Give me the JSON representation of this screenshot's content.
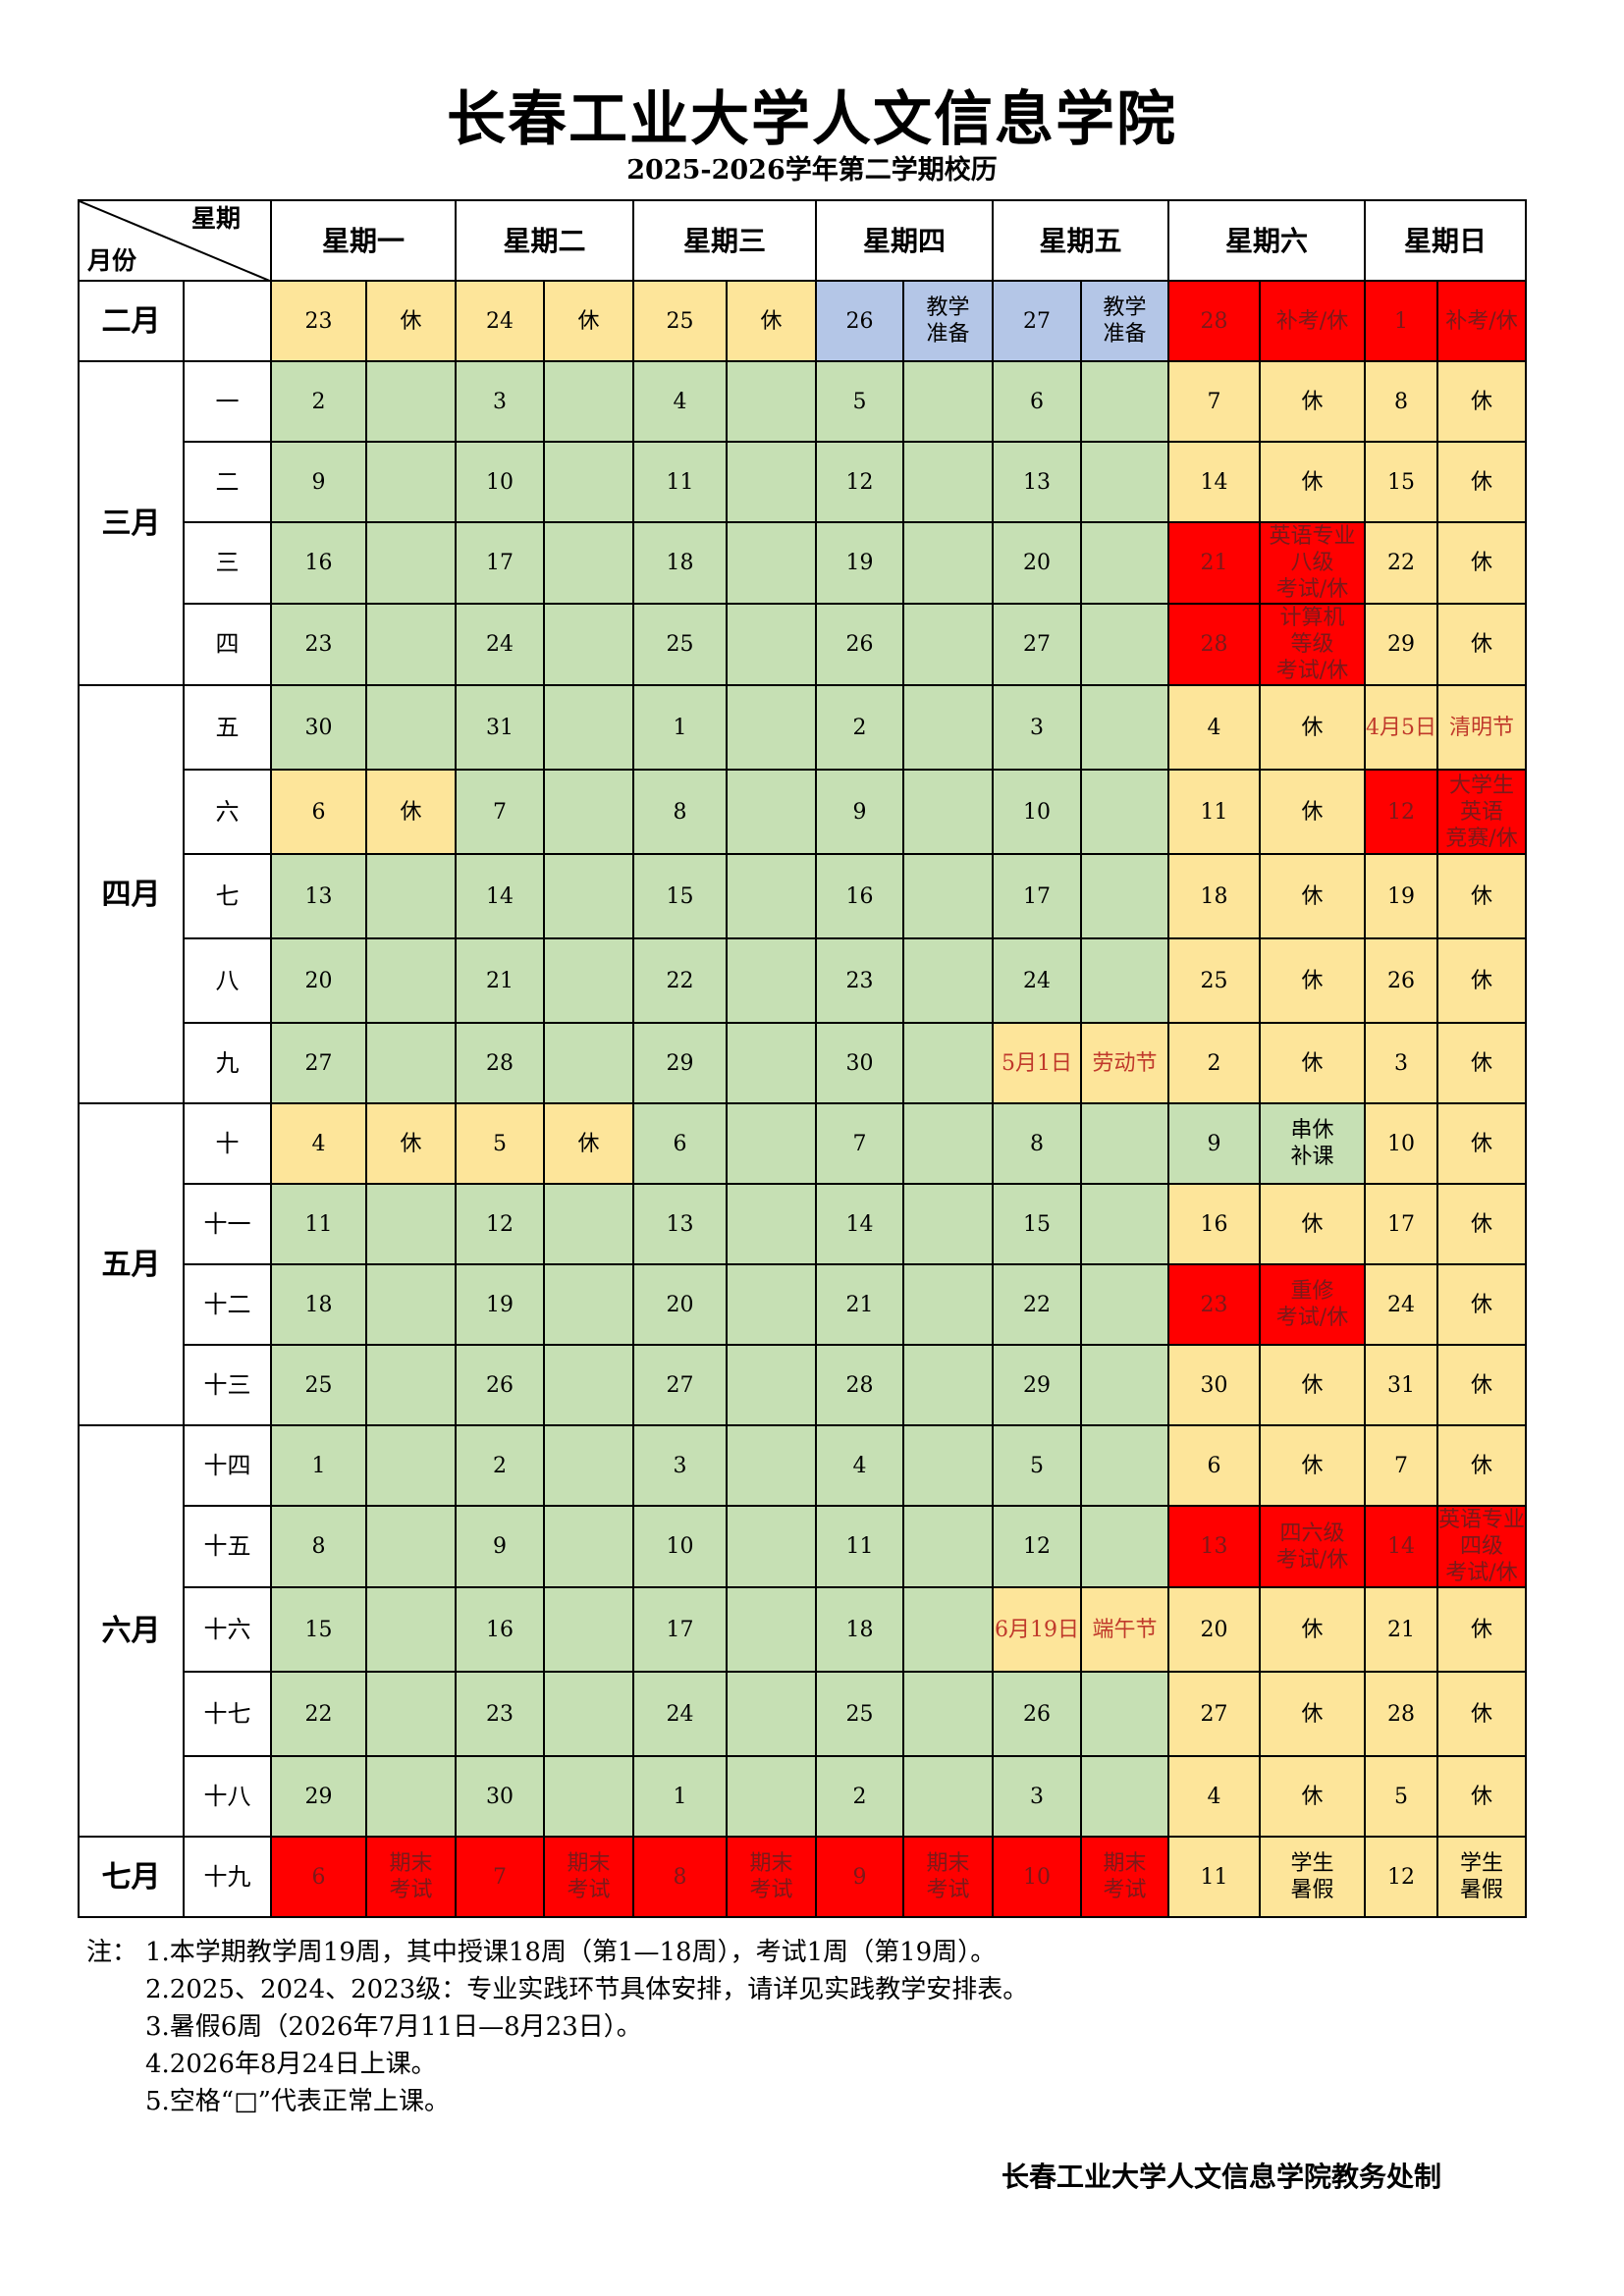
{
  "title": "长春工业大学人文信息学院",
  "subtitle": "2025-2026学年第二学期校历",
  "header": {
    "corner_top": "星期",
    "corner_bottom": "月份",
    "weekdays": [
      "星期一",
      "星期二",
      "星期三",
      "星期四",
      "星期五",
      "星期六",
      "星期日"
    ]
  },
  "rows": [
    {
      "month": "二月",
      "month_span": 1,
      "week": "",
      "cells": [
        [
          "23",
          "rest"
        ],
        [
          "休",
          "rest"
        ],
        [
          "24",
          "rest"
        ],
        [
          "休",
          "rest"
        ],
        [
          "25",
          "rest"
        ],
        [
          "休",
          "rest"
        ],
        [
          "26",
          "blue"
        ],
        [
          "教学\n准备",
          "blue"
        ],
        [
          "27",
          "blue"
        ],
        [
          "教学\n准备",
          "blue"
        ],
        [
          "28",
          "red"
        ],
        [
          "补考/休",
          "red"
        ],
        [
          "1",
          "red"
        ],
        [
          "补考/休",
          "red"
        ]
      ]
    },
    {
      "month": "三月",
      "month_span": 4,
      "week": "一",
      "cells": [
        [
          "2",
          "work"
        ],
        [
          "",
          "work"
        ],
        [
          "3",
          "work"
        ],
        [
          "",
          "work"
        ],
        [
          "4",
          "work"
        ],
        [
          "",
          "work"
        ],
        [
          "5",
          "work"
        ],
        [
          "",
          "work"
        ],
        [
          "6",
          "work"
        ],
        [
          "",
          "work"
        ],
        [
          "7",
          "rest"
        ],
        [
          "休",
          "rest"
        ],
        [
          "8",
          "rest"
        ],
        [
          "休",
          "rest"
        ]
      ]
    },
    {
      "week": "二",
      "cells": [
        [
          "9",
          "work"
        ],
        [
          "",
          "work"
        ],
        [
          "10",
          "work"
        ],
        [
          "",
          "work"
        ],
        [
          "11",
          "work"
        ],
        [
          "",
          "work"
        ],
        [
          "12",
          "work"
        ],
        [
          "",
          "work"
        ],
        [
          "13",
          "work"
        ],
        [
          "",
          "work"
        ],
        [
          "14",
          "rest"
        ],
        [
          "休",
          "rest"
        ],
        [
          "15",
          "rest"
        ],
        [
          "休",
          "rest"
        ]
      ]
    },
    {
      "week": "三",
      "cells": [
        [
          "16",
          "work"
        ],
        [
          "",
          "work"
        ],
        [
          "17",
          "work"
        ],
        [
          "",
          "work"
        ],
        [
          "18",
          "work"
        ],
        [
          "",
          "work"
        ],
        [
          "19",
          "work"
        ],
        [
          "",
          "work"
        ],
        [
          "20",
          "work"
        ],
        [
          "",
          "work"
        ],
        [
          "21",
          "red"
        ],
        [
          "英语专业\n八级\n考试/休",
          "red"
        ],
        [
          "22",
          "rest"
        ],
        [
          "休",
          "rest"
        ]
      ]
    },
    {
      "week": "四",
      "cells": [
        [
          "23",
          "work"
        ],
        [
          "",
          "work"
        ],
        [
          "24",
          "work"
        ],
        [
          "",
          "work"
        ],
        [
          "25",
          "work"
        ],
        [
          "",
          "work"
        ],
        [
          "26",
          "work"
        ],
        [
          "",
          "work"
        ],
        [
          "27",
          "work"
        ],
        [
          "",
          "work"
        ],
        [
          "28",
          "red"
        ],
        [
          "计算机\n等级\n考试/休",
          "red"
        ],
        [
          "29",
          "rest"
        ],
        [
          "休",
          "rest"
        ]
      ]
    },
    {
      "month": "四月",
      "month_span": 5,
      "week": "五",
      "cells": [
        [
          "30",
          "work"
        ],
        [
          "",
          "work"
        ],
        [
          "31",
          "work"
        ],
        [
          "",
          "work"
        ],
        [
          "1",
          "work"
        ],
        [
          "",
          "work"
        ],
        [
          "2",
          "work"
        ],
        [
          "",
          "work"
        ],
        [
          "3",
          "work"
        ],
        [
          "",
          "work"
        ],
        [
          "4",
          "rest"
        ],
        [
          "休",
          "rest"
        ],
        [
          "4月5日",
          "rest-hol"
        ],
        [
          "清明节",
          "rest-hol"
        ]
      ]
    },
    {
      "week": "六",
      "cells": [
        [
          "6",
          "rest"
        ],
        [
          "休",
          "rest"
        ],
        [
          "7",
          "work"
        ],
        [
          "",
          "work"
        ],
        [
          "8",
          "work"
        ],
        [
          "",
          "work"
        ],
        [
          "9",
          "work"
        ],
        [
          "",
          "work"
        ],
        [
          "10",
          "work"
        ],
        [
          "",
          "work"
        ],
        [
          "11",
          "rest"
        ],
        [
          "休",
          "rest"
        ],
        [
          "12",
          "red"
        ],
        [
          "大学生\n英语\n竞赛/休",
          "red"
        ]
      ]
    },
    {
      "week": "七",
      "cells": [
        [
          "13",
          "work"
        ],
        [
          "",
          "work"
        ],
        [
          "14",
          "work"
        ],
        [
          "",
          "work"
        ],
        [
          "15",
          "work"
        ],
        [
          "",
          "work"
        ],
        [
          "16",
          "work"
        ],
        [
          "",
          "work"
        ],
        [
          "17",
          "work"
        ],
        [
          "",
          "work"
        ],
        [
          "18",
          "rest"
        ],
        [
          "休",
          "rest"
        ],
        [
          "19",
          "rest"
        ],
        [
          "休",
          "rest"
        ]
      ]
    },
    {
      "week": "八",
      "cells": [
        [
          "20",
          "work"
        ],
        [
          "",
          "work"
        ],
        [
          "21",
          "work"
        ],
        [
          "",
          "work"
        ],
        [
          "22",
          "work"
        ],
        [
          "",
          "work"
        ],
        [
          "23",
          "work"
        ],
        [
          "",
          "work"
        ],
        [
          "24",
          "work"
        ],
        [
          "",
          "work"
        ],
        [
          "25",
          "rest"
        ],
        [
          "休",
          "rest"
        ],
        [
          "26",
          "rest"
        ],
        [
          "休",
          "rest"
        ]
      ]
    },
    {
      "week": "九",
      "cells": [
        [
          "27",
          "work"
        ],
        [
          "",
          "work"
        ],
        [
          "28",
          "work"
        ],
        [
          "",
          "work"
        ],
        [
          "29",
          "work"
        ],
        [
          "",
          "work"
        ],
        [
          "30",
          "work"
        ],
        [
          "",
          "work"
        ],
        [
          "5月1日",
          "rest-hol"
        ],
        [
          "劳动节",
          "rest-hol"
        ],
        [
          "2",
          "rest"
        ],
        [
          "休",
          "rest"
        ],
        [
          "3",
          "rest"
        ],
        [
          "休",
          "rest"
        ]
      ]
    },
    {
      "month": "五月",
      "month_span": 4,
      "week": "十",
      "cells": [
        [
          "4",
          "rest"
        ],
        [
          "休",
          "rest"
        ],
        [
          "5",
          "rest"
        ],
        [
          "休",
          "rest"
        ],
        [
          "6",
          "work"
        ],
        [
          "",
          "work"
        ],
        [
          "7",
          "work"
        ],
        [
          "",
          "work"
        ],
        [
          "8",
          "work"
        ],
        [
          "",
          "work"
        ],
        [
          "9",
          "work"
        ],
        [
          "串休\n补课",
          "work"
        ],
        [
          "10",
          "rest"
        ],
        [
          "休",
          "rest"
        ]
      ]
    },
    {
      "week": "十一",
      "cells": [
        [
          "11",
          "work"
        ],
        [
          "",
          "work"
        ],
        [
          "12",
          "work"
        ],
        [
          "",
          "work"
        ],
        [
          "13",
          "work"
        ],
        [
          "",
          "work"
        ],
        [
          "14",
          "work"
        ],
        [
          "",
          "work"
        ],
        [
          "15",
          "work"
        ],
        [
          "",
          "work"
        ],
        [
          "16",
          "rest"
        ],
        [
          "休",
          "rest"
        ],
        [
          "17",
          "rest"
        ],
        [
          "休",
          "rest"
        ]
      ]
    },
    {
      "week": "十二",
      "cells": [
        [
          "18",
          "work"
        ],
        [
          "",
          "work"
        ],
        [
          "19",
          "work"
        ],
        [
          "",
          "work"
        ],
        [
          "20",
          "work"
        ],
        [
          "",
          "work"
        ],
        [
          "21",
          "work"
        ],
        [
          "",
          "work"
        ],
        [
          "22",
          "work"
        ],
        [
          "",
          "work"
        ],
        [
          "23",
          "red"
        ],
        [
          "重修\n考试/休",
          "red"
        ],
        [
          "24",
          "rest"
        ],
        [
          "休",
          "rest"
        ]
      ]
    },
    {
      "week": "十三",
      "cells": [
        [
          "25",
          "work"
        ],
        [
          "",
          "work"
        ],
        [
          "26",
          "work"
        ],
        [
          "",
          "work"
        ],
        [
          "27",
          "work"
        ],
        [
          "",
          "work"
        ],
        [
          "28",
          "work"
        ],
        [
          "",
          "work"
        ],
        [
          "29",
          "work"
        ],
        [
          "",
          "work"
        ],
        [
          "30",
          "rest"
        ],
        [
          "休",
          "rest"
        ],
        [
          "31",
          "rest"
        ],
        [
          "休",
          "rest"
        ]
      ]
    },
    {
      "month": "六月",
      "month_span": 5,
      "week": "十四",
      "cells": [
        [
          "1",
          "work"
        ],
        [
          "",
          "work"
        ],
        [
          "2",
          "work"
        ],
        [
          "",
          "work"
        ],
        [
          "3",
          "work"
        ],
        [
          "",
          "work"
        ],
        [
          "4",
          "work"
        ],
        [
          "",
          "work"
        ],
        [
          "5",
          "work"
        ],
        [
          "",
          "work"
        ],
        [
          "6",
          "rest"
        ],
        [
          "休",
          "rest"
        ],
        [
          "7",
          "rest"
        ],
        [
          "休",
          "rest"
        ]
      ]
    },
    {
      "week": "十五",
      "cells": [
        [
          "8",
          "work"
        ],
        [
          "",
          "work"
        ],
        [
          "9",
          "work"
        ],
        [
          "",
          "work"
        ],
        [
          "10",
          "work"
        ],
        [
          "",
          "work"
        ],
        [
          "11",
          "work"
        ],
        [
          "",
          "work"
        ],
        [
          "12",
          "work"
        ],
        [
          "",
          "work"
        ],
        [
          "13",
          "red"
        ],
        [
          "四六级\n考试/休",
          "red"
        ],
        [
          "14",
          "red"
        ],
        [
          "英语专业\n四级\n考试/休",
          "red"
        ]
      ]
    },
    {
      "week": "十六",
      "cells": [
        [
          "15",
          "work"
        ],
        [
          "",
          "work"
        ],
        [
          "16",
          "work"
        ],
        [
          "",
          "work"
        ],
        [
          "17",
          "work"
        ],
        [
          "",
          "work"
        ],
        [
          "18",
          "work"
        ],
        [
          "",
          "work"
        ],
        [
          "6月19日",
          "rest-hol"
        ],
        [
          "端午节",
          "rest-hol"
        ],
        [
          "20",
          "rest"
        ],
        [
          "休",
          "rest"
        ],
        [
          "21",
          "rest"
        ],
        [
          "休",
          "rest"
        ]
      ]
    },
    {
      "week": "十七",
      "cells": [
        [
          "22",
          "work"
        ],
        [
          "",
          "work"
        ],
        [
          "23",
          "work"
        ],
        [
          "",
          "work"
        ],
        [
          "24",
          "work"
        ],
        [
          "",
          "work"
        ],
        [
          "25",
          "work"
        ],
        [
          "",
          "work"
        ],
        [
          "26",
          "work"
        ],
        [
          "",
          "work"
        ],
        [
          "27",
          "rest"
        ],
        [
          "休",
          "rest"
        ],
        [
          "28",
          "rest"
        ],
        [
          "休",
          "rest"
        ]
      ]
    },
    {
      "week": "十八",
      "cells": [
        [
          "29",
          "work"
        ],
        [
          "",
          "work"
        ],
        [
          "30",
          "work"
        ],
        [
          "",
          "work"
        ],
        [
          "1",
          "work"
        ],
        [
          "",
          "work"
        ],
        [
          "2",
          "work"
        ],
        [
          "",
          "work"
        ],
        [
          "3",
          "work"
        ],
        [
          "",
          "work"
        ],
        [
          "4",
          "rest"
        ],
        [
          "休",
          "rest"
        ],
        [
          "5",
          "rest"
        ],
        [
          "休",
          "rest"
        ]
      ]
    },
    {
      "month": "七月",
      "month_span": 1,
      "week": "十九",
      "cells": [
        [
          "6",
          "red"
        ],
        [
          "期末\n考试",
          "red"
        ],
        [
          "7",
          "red"
        ],
        [
          "期末\n考试",
          "red"
        ],
        [
          "8",
          "red"
        ],
        [
          "期末\n考试",
          "red"
        ],
        [
          "9",
          "red"
        ],
        [
          "期末\n考试",
          "red"
        ],
        [
          "10",
          "red"
        ],
        [
          "期末\n考试",
          "red"
        ],
        [
          "11",
          "rest"
        ],
        [
          "学生\n暑假",
          "rest"
        ],
        [
          "12",
          "rest"
        ],
        [
          "学生\n暑假",
          "rest"
        ]
      ]
    }
  ],
  "notes": {
    "label": "注：",
    "items": [
      "1.本学期教学周19周，其中授课18周（第1—18周），考试1周（第19周）。",
      "2.2025、2024、2023级：专业实践环节具体安排，请详见实践教学安排表。",
      "3.暑假6周（2026年7月11日—8月23日）。",
      "4.2026年8月24日上课。",
      "5.空格“□”代表正常上课。"
    ]
  },
  "footer": "长春工业大学人文信息学院教务处制",
  "colors": {
    "work": "#c6e0b4",
    "rest": "#fde59a",
    "red": "#ff0000",
    "blue": "#b4c6e7"
  }
}
